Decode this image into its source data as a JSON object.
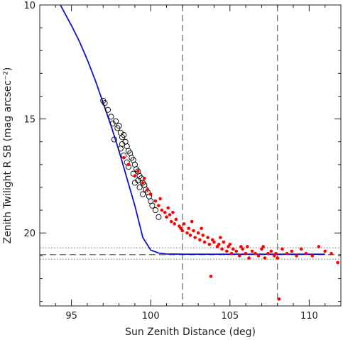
{
  "chart_data": {
    "type": "scatter",
    "xlabel": "Sun Zenith Distance (deg)",
    "ylabel": "Zenith Twilight R SB (mag arcsec⁻²)",
    "xlim": [
      93,
      112
    ],
    "ylim": [
      23.2,
      10
    ],
    "y_inverted": true,
    "x_ticks": [
      95,
      100,
      105,
      110
    ],
    "x_tick_labels": [
      "95",
      "100",
      "105",
      "110"
    ],
    "y_ticks": [
      10,
      15,
      20
    ],
    "y_tick_labels": [
      "10",
      "15",
      "20"
    ],
    "grid": false,
    "legend": "none",
    "colors": {
      "model_line": "#1010d0",
      "red_points": "#ff0000",
      "open_circles": "#000000",
      "reference_lines": "#666666"
    },
    "vertical_dashed_lines": [
      102,
      108
    ],
    "horizontal_dashed_line": 20.95,
    "horizontal_dotted_lines": [
      20.65,
      21.15
    ],
    "series": [
      {
        "kind": "line",
        "x": [
          94.3,
          95.0,
          95.5,
          96.0,
          96.5,
          97.0,
          97.5,
          98.0,
          98.5,
          99.0,
          99.5,
          100.0,
          100.5,
          101.0,
          102.0,
          104.0,
          106.0,
          108.0,
          110.0,
          111.0
        ],
        "y": [
          10.0,
          10.9,
          11.6,
          12.4,
          13.3,
          14.3,
          15.3,
          16.4,
          17.6,
          18.8,
          20.2,
          20.75,
          20.88,
          20.92,
          20.93,
          20.93,
          20.93,
          20.93,
          20.93,
          20.93
        ]
      },
      {
        "kind": "open-circles",
        "x": [
          97.0,
          97.1,
          97.3,
          97.5,
          97.6,
          97.8,
          97.9,
          98.0,
          98.1,
          98.2,
          98.3,
          97.7,
          98.4,
          98.5,
          98.1,
          98.6,
          98.7,
          98.3,
          98.8,
          98.9,
          98.5,
          99.0,
          98.6,
          99.1,
          99.2,
          98.9,
          99.3,
          99.4,
          99.2,
          99.5,
          99.6,
          99.3,
          99.7,
          99.8,
          99.5,
          99.9,
          100.0,
          100.1,
          100.3,
          100.5,
          99.0,
          98.2
        ],
        "y": [
          14.2,
          14.3,
          14.6,
          14.9,
          15.2,
          15.1,
          15.4,
          15.3,
          15.6,
          15.8,
          15.7,
          15.9,
          16.0,
          16.2,
          16.3,
          16.4,
          16.5,
          16.6,
          16.7,
          16.8,
          16.9,
          17.0,
          17.1,
          17.2,
          17.3,
          17.4,
          17.5,
          17.6,
          17.7,
          17.8,
          17.9,
          18.0,
          18.1,
          18.2,
          18.3,
          18.4,
          18.6,
          18.8,
          19.0,
          19.3,
          17.8,
          16.1
        ]
      },
      {
        "kind": "filled-points",
        "x": [
          98.3,
          98.6,
          99.0,
          99.2,
          99.5,
          99.8,
          100.0,
          100.3,
          100.5,
          100.7,
          100.9,
          101.0,
          101.2,
          101.3,
          101.5,
          101.6,
          101.8,
          101.9,
          102.0,
          102.1,
          102.3,
          102.4,
          102.5,
          102.7,
          102.8,
          103.0,
          103.1,
          103.3,
          103.4,
          103.6,
          103.7,
          103.9,
          104.0,
          104.2,
          104.3,
          104.5,
          104.6,
          104.8,
          104.9,
          105.1,
          105.2,
          105.4,
          105.6,
          105.8,
          106.0,
          106.2,
          106.4,
          106.6,
          106.8,
          107.0,
          107.2,
          107.4,
          107.6,
          107.8,
          108.0,
          108.3,
          108.6,
          108.9,
          109.2,
          109.5,
          109.8,
          110.2,
          110.6,
          111.0,
          111.4,
          111.8,
          103.8,
          108.1,
          101.4,
          102.6,
          104.4,
          105.0,
          106.1,
          107.1,
          101.1,
          103.2,
          105.7,
          107.9,
          99.6,
          100.6
        ],
        "y": [
          16.7,
          17.0,
          17.5,
          17.3,
          17.8,
          18.1,
          18.3,
          18.6,
          18.8,
          19.0,
          19.1,
          19.3,
          19.2,
          19.5,
          19.6,
          19.4,
          19.7,
          19.8,
          19.9,
          19.6,
          20.0,
          19.8,
          20.1,
          19.9,
          20.2,
          20.0,
          20.3,
          20.1,
          20.4,
          20.2,
          20.5,
          20.3,
          20.4,
          20.6,
          20.5,
          20.7,
          20.4,
          20.8,
          20.6,
          20.9,
          20.7,
          20.8,
          21.0,
          20.7,
          20.9,
          21.1,
          20.8,
          20.9,
          21.0,
          20.7,
          21.1,
          20.9,
          20.8,
          21.0,
          21.1,
          20.7,
          20.9,
          20.8,
          21.0,
          20.7,
          20.9,
          21.0,
          20.6,
          20.8,
          20.9,
          21.3,
          21.9,
          22.9,
          19.1,
          19.5,
          20.2,
          20.5,
          20.6,
          20.6,
          18.9,
          19.8,
          20.6,
          20.9,
          17.6,
          18.5
        ]
      }
    ]
  }
}
